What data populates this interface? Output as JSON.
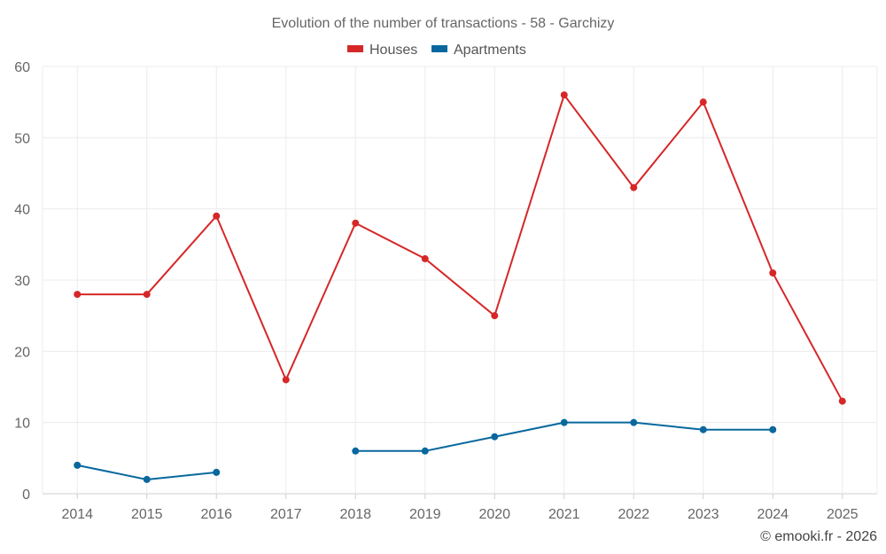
{
  "chart_data": {
    "type": "line",
    "title": "Evolution of the number of transactions - 58 - Garchizy",
    "categories": [
      "2014",
      "2015",
      "2016",
      "2017",
      "2018",
      "2019",
      "2020",
      "2021",
      "2022",
      "2023",
      "2024",
      "2025"
    ],
    "series": [
      {
        "name": "Houses",
        "color": "#d62728",
        "values": [
          28,
          28,
          39,
          16,
          38,
          33,
          25,
          56,
          43,
          55,
          31,
          13
        ]
      },
      {
        "name": "Apartments",
        "color": "#08689e",
        "values": [
          4,
          2,
          3,
          null,
          6,
          6,
          8,
          10,
          10,
          9,
          9,
          null
        ]
      }
    ],
    "ylim": [
      0,
      60
    ],
    "yticks": [
      0,
      10,
      20,
      30,
      40,
      50,
      60
    ],
    "xlabel": "",
    "ylabel": "",
    "grid": true,
    "legend": "top-center"
  },
  "credit": "© emooki.fr - 2026"
}
